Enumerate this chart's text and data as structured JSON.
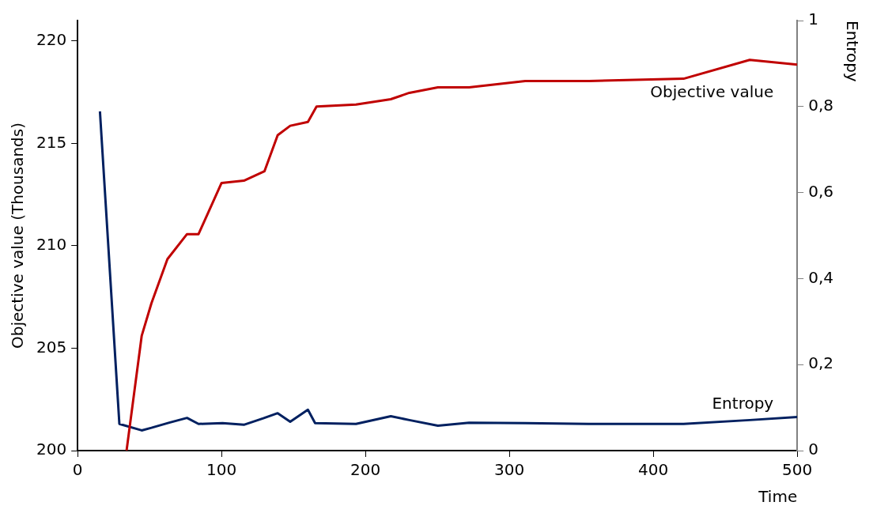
{
  "chart_data": {
    "type": "line",
    "xlabel": "Time",
    "ylabel": "Objective value (Thousands)",
    "y2label": "Entropy",
    "xlim": [
      0,
      500
    ],
    "xticks": [
      0,
      100,
      200,
      300,
      400,
      500
    ],
    "ylim": [
      200,
      221
    ],
    "yticks": [
      200,
      205,
      210,
      215,
      220
    ],
    "y2lim": [
      0,
      1
    ],
    "y2ticks": [
      0,
      {
        "value": 0.2,
        "label": "0,2"
      },
      {
        "value": 0.4,
        "label": "0,4"
      },
      {
        "value": 0.6,
        "label": "0,6"
      },
      {
        "value": 0.8,
        "label": "0,8"
      },
      1
    ],
    "grid": false,
    "legend": false,
    "marker": "none",
    "line_style": "solid",
    "series": [
      {
        "name": "Objective value",
        "color": "#c00000",
        "x": [
          34,
          44.5,
          51.3,
          62.4,
          76,
          84,
          100,
          115.5,
          129.8,
          139,
          147.7,
          160,
          166,
          193.4,
          217.6,
          230.5,
          250.3,
          272,
          311,
          355.4,
          421,
          467,
          500
        ],
        "values": [
          200,
          205.6,
          207.2,
          209.35,
          210.57,
          210.57,
          213.07,
          213.18,
          213.64,
          215.4,
          215.86,
          216.05,
          216.8,
          216.9,
          217.16,
          217.47,
          217.74,
          217.74,
          218.05,
          218.05,
          218.16,
          219.08,
          218.85
        ]
      },
      {
        "name": "Entropy",
        "color": "#002060",
        "axis": "y2",
        "x": [
          15.5,
          29,
          44.5,
          51.3,
          63.7,
          76,
          84,
          100.7,
          115.5,
          129,
          139,
          147.7,
          160,
          165,
          193.4,
          217.6,
          230.5,
          250.3,
          272,
          311,
          355,
          421,
          467,
          500
        ],
        "values": [
          0.789,
          0.062,
          0.047,
          0.053,
          0.065,
          0.076,
          0.062,
          0.064,
          0.06,
          0.075,
          0.087,
          0.067,
          0.095,
          0.064,
          0.062,
          0.08,
          0.071,
          0.058,
          0.065,
          0.064,
          0.062,
          0.062,
          0.071,
          0.078
        ]
      }
    ]
  }
}
